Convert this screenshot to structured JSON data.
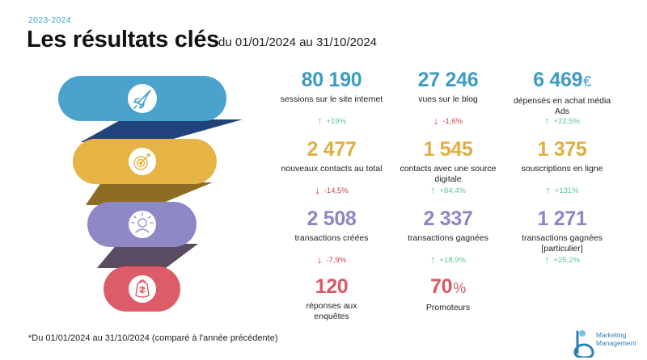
{
  "header": {
    "year": "2023-2024",
    "title": "Les résultats clés",
    "subtitle": "du 01/01/2024 au 31/10/2024"
  },
  "funnel": {
    "stages": [
      {
        "icon": "rocket-icon",
        "color": "#4aa3cc"
      },
      {
        "icon": "target-icon",
        "color": "#e6b445"
      },
      {
        "icon": "people-icon",
        "color": "#8e89c6"
      },
      {
        "icon": "bag-icon",
        "color": "#dc5d68"
      }
    ],
    "connectors": [
      "#21427a",
      "#8d6d22",
      "#5a4b63",
      "#7a3a47"
    ]
  },
  "metrics": {
    "sessions": {
      "value": "80 190",
      "label": "sessions sur le site internet",
      "change": "+19%",
      "direction": "up"
    },
    "blog_views": {
      "value": "27 246",
      "label": "vues sur le blog",
      "change": "-1,6%",
      "direction": "down"
    },
    "ads": {
      "value": "6 469",
      "unit": "€",
      "label": "dépensés en achat média Ads",
      "change": "+22,5%",
      "direction": "up"
    },
    "new_contacts": {
      "value": "2 477",
      "label": "nouveaux contacts au total",
      "change": "-14,5%",
      "direction": "down"
    },
    "digital_contacts": {
      "value": "1 545",
      "label": "contacts avec une source digitale",
      "change": "+84,4%",
      "direction": "up"
    },
    "subscriptions": {
      "value": "1 375",
      "label": "souscriptions en ligne",
      "change": "+131%",
      "direction": "up"
    },
    "tx_created": {
      "value": "2 508",
      "label": "transactions créées",
      "change": "-7,9%",
      "direction": "down"
    },
    "tx_won": {
      "value": "2 337",
      "label": "transactions gagnées",
      "change": "+18,9%",
      "direction": "up"
    },
    "tx_won_private": {
      "value": "1 271",
      "label": "transactions gagnées [particulier]",
      "change": "+25,2%",
      "direction": "up"
    },
    "survey": {
      "value": "120",
      "label": "réponses aux enquêtes"
    },
    "promoters": {
      "value": "70",
      "unit": "%",
      "label": "Promoteurs"
    }
  },
  "footnote": "*Du 01/01/2024 au 31/10/2024 (comparé à l'année précédente)",
  "logo": {
    "line1": "Marketing",
    "line2": "Management"
  },
  "colors": {
    "blue": "#3e9bc5",
    "yellow": "#e1ae3d",
    "purple": "#8d86c4",
    "red": "#d85a65",
    "up": "#5cc494",
    "down": "#c8464f"
  }
}
